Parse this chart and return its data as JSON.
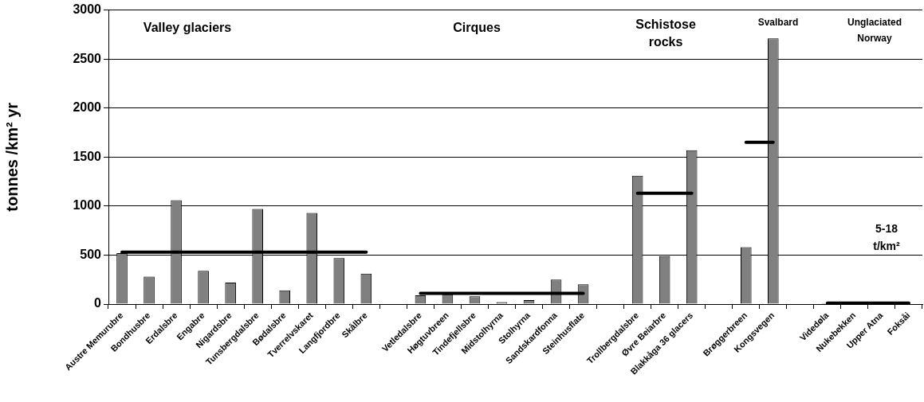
{
  "chart_data": {
    "type": "bar",
    "ylabel": "tonnes /km² yr",
    "categories": [
      "Austre Memurubre",
      "Bondhusbre",
      "Erdalsbre",
      "Engabre",
      "Nigardsbre",
      "Tunsbergdalsbre",
      "Bødalsbre",
      "Tverrelvskaret",
      "Langfjordbre",
      "Skålbre",
      null,
      "Vetledalsbre",
      "Høgtuvbreen",
      "Tindefjellsbre",
      "Midstolhyrna",
      "Stolhyrna",
      "Sandskardfonna",
      "Steinhusflate",
      null,
      "Trollbergdalsbre",
      "Øvre Beiarbre",
      "Blakkåga 36 glacers",
      null,
      "Brøggerbreen",
      "Kongsvegen",
      null,
      "Videdøla",
      "Nukebekken",
      "Upper Atna",
      "Foksåi"
    ],
    "series": [
      {
        "color": "#808080",
        "values": [
          520,
          280,
          1060,
          340,
          220,
          970,
          140,
          930,
          470,
          310,
          null,
          90,
          100,
          80,
          20,
          40,
          250,
          200,
          null,
          1310,
          490,
          1570,
          null,
          580,
          2710,
          null,
          10,
          10,
          10,
          5
        ]
      },
      {
        "type": "line",
        "color": "#000000",
        "values": [
          530,
          530,
          530,
          530,
          530,
          530,
          530,
          530,
          530,
          530,
          null,
          110,
          110,
          110,
          110,
          110,
          110,
          110,
          null,
          1130,
          1130,
          1130,
          null,
          1650,
          1650,
          null,
          10,
          10,
          10,
          10
        ]
      }
    ],
    "ylim": [
      0,
      3000
    ],
    "yticks": [
      0,
      500,
      1000,
      1500,
      2000,
      2500,
      3000
    ],
    "grid": "y",
    "legend": false,
    "marker": "none",
    "line_style": "solid",
    "annotations": [
      "Valley glaciers",
      "Cirques",
      "Schistose\nrocks",
      "Svalbard",
      "Unglaciated\nNorway",
      "5-18\nt/km²"
    ]
  }
}
